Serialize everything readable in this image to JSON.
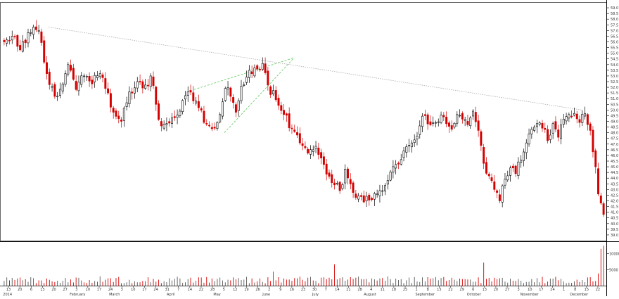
{
  "chart_data": {
    "type": "candlestick",
    "title": "",
    "price_axis": {
      "ylim": [
        38.5,
        59.5
      ],
      "ticks": [
        "59.0",
        "58.5",
        "58.0",
        "57.5",
        "57.0",
        "56.5",
        "56.0",
        "55.5",
        "55.0",
        "54.5",
        "54.0",
        "53.5",
        "53.0",
        "52.5",
        "52.0",
        "51.5",
        "51.0",
        "50.5",
        "50.0",
        "49.5",
        "49.0",
        "48.5",
        "48.0",
        "47.5",
        "47.0",
        "46.5",
        "46.0",
        "45.5",
        "45.0",
        "44.5",
        "44.0",
        "43.5",
        "43.0",
        "42.5",
        "42.0",
        "41.5",
        "41.0",
        "40.5",
        "40.0",
        "39.5",
        "39.0"
      ]
    },
    "volume_axis": {
      "ylim": [
        0,
        13000
      ],
      "ticks": [
        "10000",
        "5000"
      ]
    },
    "date_ticks": [
      "13",
      "20",
      "6",
      "13",
      "20",
      "27",
      "3",
      "10",
      "17",
      "24",
      "3",
      "10",
      "17",
      "24",
      "31",
      "7",
      "14",
      "22",
      "28",
      "5",
      "12",
      "19",
      "26",
      "2",
      "9",
      "16",
      "23",
      "30",
      "7",
      "14",
      "21",
      "28",
      "4",
      "11",
      "18",
      "25",
      "1",
      "8",
      "15",
      "22",
      "29",
      "6",
      "13",
      "20",
      "27",
      "3",
      "10",
      "17",
      "24",
      "1",
      "8",
      "15",
      "22"
    ],
    "month_labels": [
      "2014",
      "February",
      "March",
      "April",
      "May",
      "June",
      "July",
      "August",
      "September",
      "October",
      "November",
      "December"
    ],
    "trendlines": [
      {
        "color": "#aaaaaa",
        "style": "dotted",
        "points": [
          [
            0.08,
            57.3
          ],
          [
            0.96,
            50.0
          ]
        ]
      },
      {
        "color": "#5cc85c",
        "style": "dashed",
        "points": [
          [
            0.32,
            51.8
          ],
          [
            0.485,
            54.6
          ]
        ]
      },
      {
        "color": "#5cc85c",
        "style": "dashed",
        "points": [
          [
            0.37,
            48.0
          ],
          [
            0.485,
            54.6
          ]
        ]
      }
    ],
    "anchors": [
      [
        0,
        56.0
      ],
      [
        3,
        56.5
      ],
      [
        6,
        55.3
      ],
      [
        9,
        56.8
      ],
      [
        11,
        57.3
      ],
      [
        13,
        57.0
      ],
      [
        16,
        53.2
      ],
      [
        19,
        51.2
      ],
      [
        22,
        52.3
      ],
      [
        24,
        54.0
      ],
      [
        27,
        51.8
      ],
      [
        30,
        53.0
      ],
      [
        33,
        52.3
      ],
      [
        36,
        53.2
      ],
      [
        39,
        51.5
      ],
      [
        41,
        49.8
      ],
      [
        44,
        49.0
      ],
      [
        47,
        51.6
      ],
      [
        50,
        52.5
      ],
      [
        53,
        52.2
      ],
      [
        55,
        53.0
      ],
      [
        57,
        50.5
      ],
      [
        59,
        48.6
      ],
      [
        61,
        48.8
      ],
      [
        63,
        49.3
      ],
      [
        66,
        49.9
      ],
      [
        69,
        51.6
      ],
      [
        71,
        50.8
      ],
      [
        73,
        50.2
      ],
      [
        75,
        48.9
      ],
      [
        77,
        48.6
      ],
      [
        79,
        48.4
      ],
      [
        81,
        49.6
      ],
      [
        83,
        51.9
      ],
      [
        85,
        51.2
      ],
      [
        87,
        49.8
      ],
      [
        89,
        52.1
      ],
      [
        91,
        52.9
      ],
      [
        93,
        53.2
      ],
      [
        95,
        53.6
      ],
      [
        97,
        54.1
      ],
      [
        99,
        52.2
      ],
      [
        102,
        50.9
      ],
      [
        105,
        49.6
      ],
      [
        108,
        48.4
      ],
      [
        111,
        47.1
      ],
      [
        114,
        46.2
      ],
      [
        117,
        46.8
      ],
      [
        120,
        45.2
      ],
      [
        123,
        43.6
      ],
      [
        126,
        42.9
      ],
      [
        128,
        44.8
      ],
      [
        130,
        43.5
      ],
      [
        132,
        42.3
      ],
      [
        135,
        41.9
      ],
      [
        138,
        42.1
      ],
      [
        141,
        42.9
      ],
      [
        144,
        43.8
      ],
      [
        147,
        45.2
      ],
      [
        150,
        46.4
      ],
      [
        153,
        47.1
      ],
      [
        156,
        48.6
      ],
      [
        158,
        49.5
      ],
      [
        160,
        48.7
      ],
      [
        162,
        48.9
      ],
      [
        165,
        49.4
      ],
      [
        168,
        48.3
      ],
      [
        170,
        49.6
      ],
      [
        172,
        49.2
      ],
      [
        174,
        48.7
      ],
      [
        176,
        49.9
      ],
      [
        178,
        48.2
      ],
      [
        180,
        45.3
      ],
      [
        182,
        44.2
      ],
      [
        184,
        43.0
      ],
      [
        186,
        42.0
      ],
      [
        188,
        43.9
      ],
      [
        190,
        44.9
      ],
      [
        192,
        44.4
      ],
      [
        194,
        45.6
      ],
      [
        196,
        47.1
      ],
      [
        198,
        48.3
      ],
      [
        200,
        48.8
      ],
      [
        202,
        48.4
      ],
      [
        204,
        47.3
      ],
      [
        206,
        48.8
      ],
      [
        208,
        47.6
      ],
      [
        210,
        49.2
      ],
      [
        212,
        49.6
      ],
      [
        214,
        49.7
      ],
      [
        216,
        48.9
      ],
      [
        218,
        49.7
      ],
      [
        220,
        48.2
      ],
      [
        222,
        45.0
      ],
      [
        223,
        42.6
      ],
      [
        224,
        41.8
      ],
      [
        225,
        40.8
      ]
    ],
    "volume_spikes": [
      [
        224,
        11500
      ],
      [
        225,
        12500
      ],
      [
        223,
        3800
      ],
      [
        124,
        6700
      ],
      [
        180,
        7200
      ],
      [
        101,
        4400
      ]
    ]
  }
}
